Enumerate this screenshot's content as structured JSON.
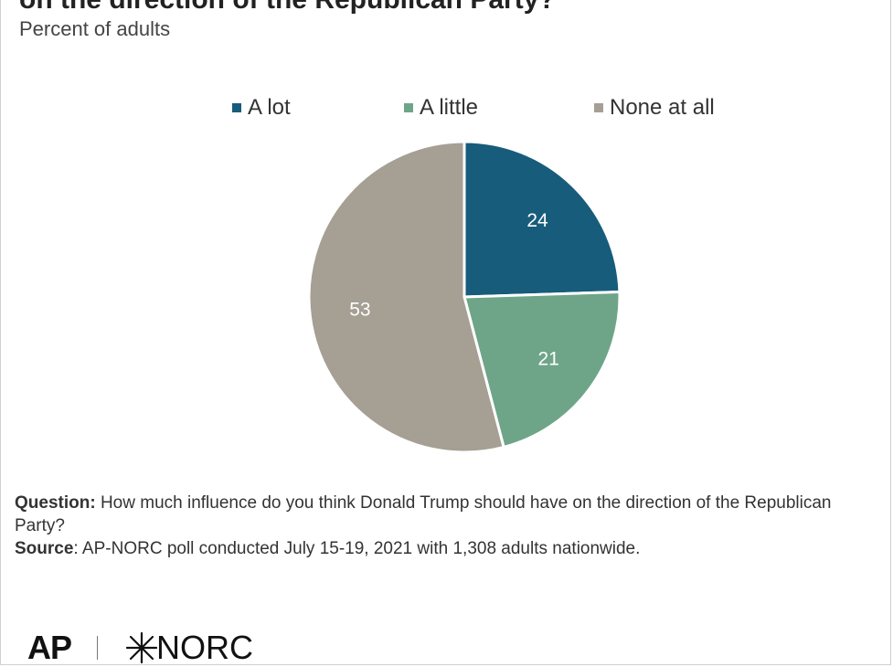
{
  "header": {
    "title": "on the direction of the Republican Party?",
    "subtitle": "Percent of adults"
  },
  "chart_data": {
    "type": "pie",
    "categories": [
      "A lot",
      "A little",
      "None at all"
    ],
    "values": [
      24,
      21,
      53
    ],
    "colors": [
      "#175c7b",
      "#6ea588",
      "#a59f94"
    ],
    "legend": "top"
  },
  "notes": {
    "question_label": "Question:",
    "question_text": " How much influence do you think Donald Trump should have on the direction of the Republican Party?",
    "source_label": "Source",
    "source_text": ": AP-NORC poll conducted July 15-19, 2021 with 1,308 adults nationwide."
  },
  "logos": {
    "ap": "AP",
    "norc": "NORC"
  }
}
